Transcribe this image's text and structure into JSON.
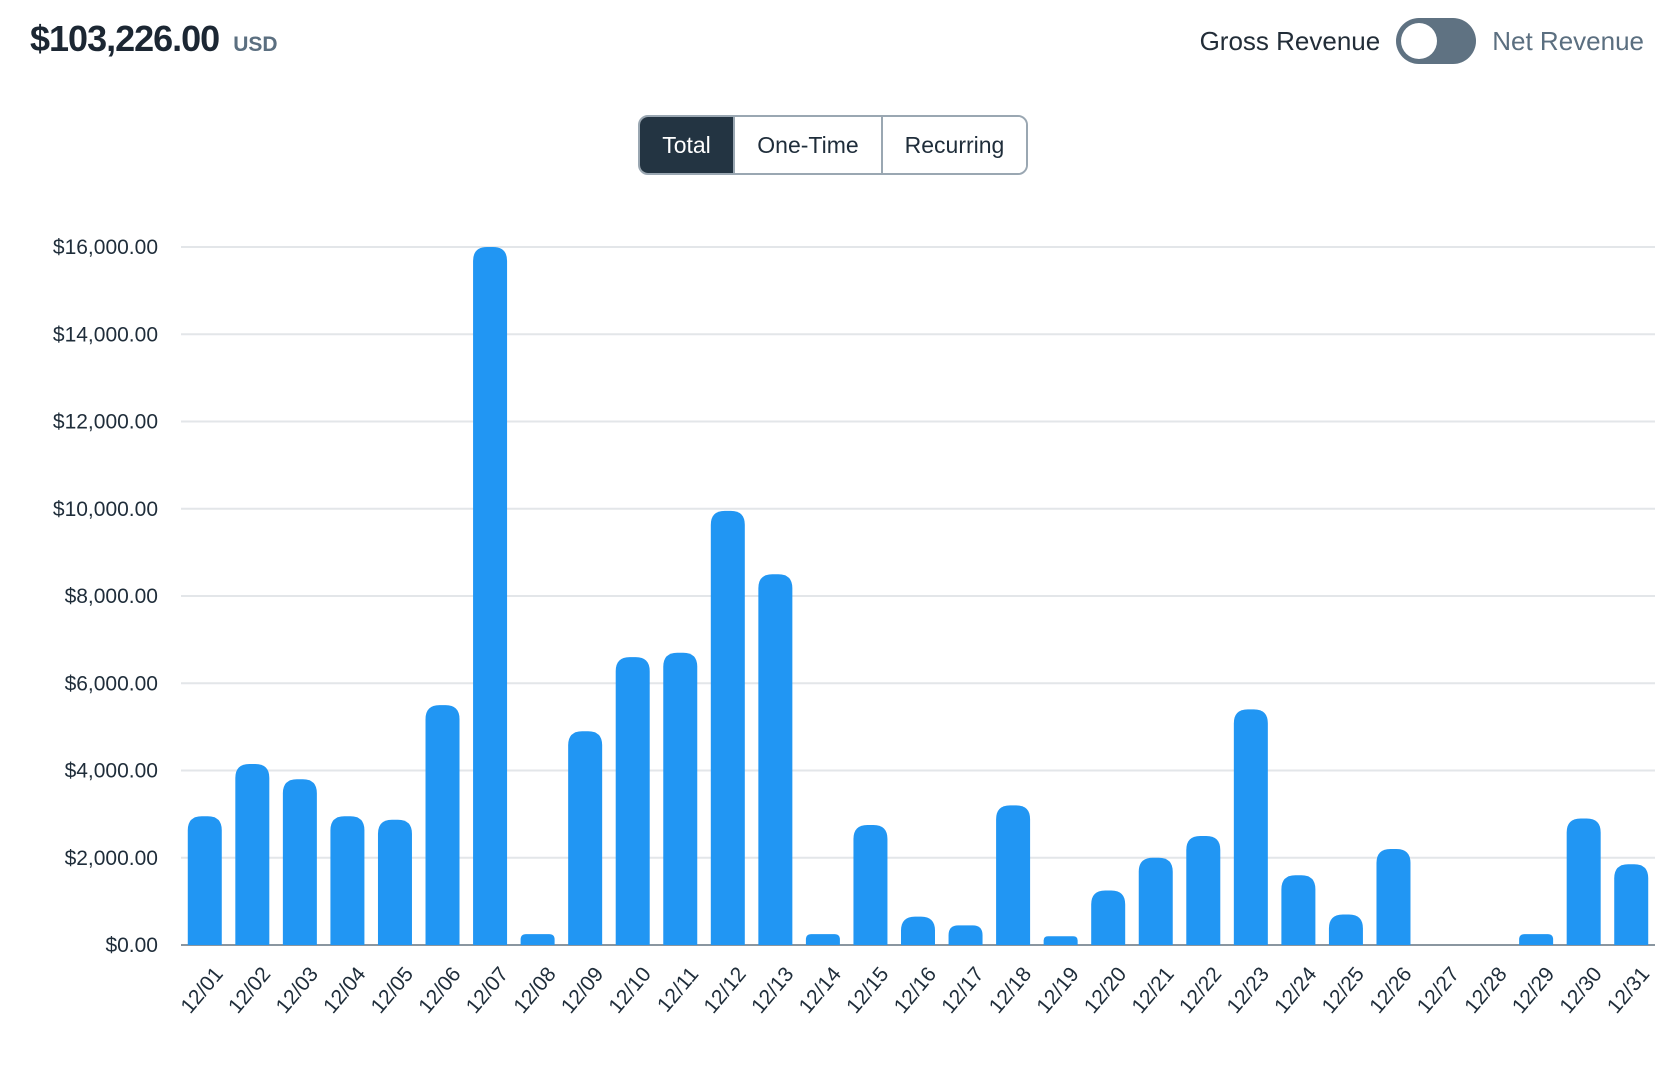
{
  "header": {
    "total_amount": "$103,226.00",
    "currency": "USD",
    "toggle_left_label": "Gross Revenue",
    "toggle_right_label": "Net Revenue"
  },
  "filter_tabs": [
    {
      "label": "Total",
      "active": true
    },
    {
      "label": "One-Time",
      "active": false
    },
    {
      "label": "Recurring",
      "active": false
    }
  ],
  "colors": {
    "bar": "#2196F3",
    "grid": "#e3e6e9",
    "axis": "#8a96a0",
    "active_tab": "#233442",
    "toggle": "#5f7282"
  },
  "chart_data": {
    "type": "bar",
    "title": "",
    "xlabel": "",
    "ylabel": "",
    "categories": [
      "12/01",
      "12/02",
      "12/03",
      "12/04",
      "12/05",
      "12/06",
      "12/07",
      "12/08",
      "12/09",
      "12/10",
      "12/11",
      "12/12",
      "12/13",
      "12/14",
      "12/15",
      "12/16",
      "12/17",
      "12/18",
      "12/19",
      "12/20",
      "12/21",
      "12/22",
      "12/23",
      "12/24",
      "12/25",
      "12/26",
      "12/27",
      "12/28",
      "12/29",
      "12/30",
      "12/31"
    ],
    "values": [
      2950,
      4150,
      3800,
      2950,
      2870,
      5500,
      16000,
      250,
      4900,
      6600,
      6700,
      9950,
      8500,
      250,
      2750,
      650,
      450,
      3200,
      200,
      1250,
      2000,
      2500,
      5400,
      1600,
      700,
      2200,
      0,
      0,
      250,
      2900,
      1850
    ],
    "ylim": [
      0,
      16000
    ],
    "yticks": [
      "$0.00",
      "$2,000.00",
      "$4,000.00",
      "$6,000.00",
      "$8,000.00",
      "$10,000.00",
      "$12,000.00",
      "$14,000.00",
      "$16,000.00"
    ],
    "grid": true,
    "legend": "none"
  }
}
